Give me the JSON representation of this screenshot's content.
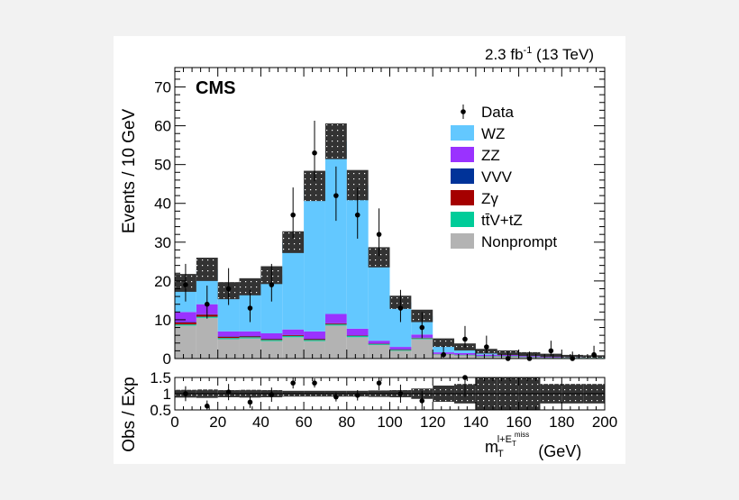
{
  "header": {
    "lumi_label": "2.3 fb",
    "lumi_exp": "-1",
    "energy_label": " (13 TeV)",
    "experiment": "CMS"
  },
  "chart_data": [
    {
      "type": "stacked_histogram",
      "ylabel": "Events / 10 GeV",
      "xlim": [
        0,
        200
      ],
      "ylim": [
        0,
        75
      ],
      "yticks": [
        0,
        10,
        20,
        30,
        40,
        50,
        60,
        70
      ],
      "bin_width": 10,
      "x_bin_edges": [
        0,
        10,
        20,
        30,
        40,
        50,
        60,
        70,
        80,
        90,
        100,
        110,
        120,
        130,
        140,
        150,
        160,
        170,
        180,
        190,
        200
      ],
      "series": [
        {
          "name": "Nonprompt",
          "color": "#b3b3b3",
          "values": [
            8.5,
            10.5,
            5.0,
            5.2,
            4.5,
            5.5,
            4.5,
            8.5,
            5.5,
            3.5,
            2.0,
            5.0,
            1.0,
            0.8,
            0.5,
            0.5,
            0.3,
            0.2,
            0.2,
            0.2
          ]
        },
        {
          "name": "ttV+tZ",
          "color": "#00cc99",
          "values": [
            0.3,
            0.3,
            0.3,
            0.3,
            0.3,
            0.3,
            0.3,
            0.3,
            0.3,
            0.2,
            0.2,
            0.2,
            0.1,
            0.1,
            0.1,
            0.1,
            0.05,
            0.05,
            0.05,
            0.05
          ]
        },
        {
          "name": "Zγ",
          "color": "#a50000",
          "values": [
            0.5,
            0.5,
            0.3,
            0.2,
            0.2,
            0.2,
            0.2,
            0.2,
            0.1,
            0.1,
            0.1,
            0.1,
            0.05,
            0.05,
            0.05,
            0.05,
            0.05,
            0.05,
            0.05,
            0.05
          ]
        },
        {
          "name": "VVV",
          "color": "#003399",
          "values": [
            0.1,
            0.1,
            0.1,
            0.1,
            0.1,
            0.1,
            0.1,
            0.1,
            0.1,
            0.1,
            0.1,
            0.1,
            0.05,
            0.05,
            0.05,
            0.05,
            0.05,
            0.05,
            0.05,
            0.05
          ]
        },
        {
          "name": "ZZ",
          "color": "#9a32ff",
          "values": [
            2.6,
            2.6,
            1.3,
            1.2,
            1.4,
            1.4,
            1.9,
            2.4,
            1.7,
            0.7,
            0.6,
            0.8,
            0.4,
            0.4,
            0.3,
            0.3,
            0.2,
            0.2,
            0.1,
            0.1
          ]
        },
        {
          "name": "WZ",
          "color": "#63c8ff",
          "values": [
            7.5,
            9.0,
            10.5,
            11.5,
            15.0,
            22.5,
            37.5,
            44.5,
            37.0,
            21.5,
            11.5,
            4.8,
            2.5,
            1.6,
            0.9,
            0.5,
            0.5,
            0.3,
            0.2,
            0.1
          ]
        }
      ],
      "total_uncertainty": [
        2.3,
        3.0,
        2.2,
        2.2,
        2.3,
        2.8,
        3.9,
        4.6,
        3.9,
        2.6,
        1.7,
        1.6,
        1.1,
        0.9,
        0.6,
        0.6,
        0.5,
        0.4,
        0.3,
        0.3
      ],
      "data_points": {
        "name": "Data",
        "x": [
          5,
          15,
          25,
          35,
          45,
          55,
          65,
          75,
          85,
          95,
          105,
          115,
          125,
          135,
          145,
          155,
          165,
          175,
          185,
          195
        ],
        "y": [
          19,
          14,
          18,
          13,
          19,
          37,
          53,
          42,
          37,
          32,
          13,
          8,
          1,
          5,
          3,
          0,
          0,
          2,
          0,
          1
        ],
        "err_low": [
          4.3,
          3.7,
          4.2,
          3.6,
          4.3,
          6.1,
          7.3,
          6.5,
          6.1,
          5.6,
          3.6,
          2.8,
          0.8,
          2.2,
          1.6,
          0,
          0,
          1.3,
          0,
          0.8
        ],
        "err_high": [
          5.4,
          4.8,
          5.3,
          4.7,
          5.4,
          7.1,
          8.3,
          7.5,
          7.1,
          6.7,
          4.7,
          4.0,
          2.3,
          3.4,
          2.9,
          1.8,
          1.8,
          2.6,
          1.8,
          2.3
        ]
      },
      "legend": {
        "placement": "top-right",
        "entries": [
          {
            "label": "Data",
            "kind": "marker"
          },
          {
            "label": "WZ",
            "color": "#63c8ff"
          },
          {
            "label": "ZZ",
            "color": "#9a32ff"
          },
          {
            "label": "VVV",
            "color": "#003399"
          },
          {
            "label": "Zγ",
            "color": "#a50000"
          },
          {
            "label": "tt̄V+tZ",
            "color": "#00cc99"
          },
          {
            "label": "Nonprompt",
            "color": "#b3b3b3"
          }
        ]
      }
    },
    {
      "type": "ratio",
      "ylabel": "Obs / Exp",
      "xlim": [
        0,
        200
      ],
      "ylim": [
        0.5,
        1.5
      ],
      "yticks": [
        0.5,
        1,
        1.5
      ],
      "xticks": [
        0,
        20,
        40,
        60,
        80,
        100,
        120,
        140,
        160,
        180,
        200
      ],
      "xlabel_main": "m",
      "xlabel_sub": "T",
      "xlabel_sup": "l+E",
      "xlabel_sup_sub": "T",
      "xlabel_sup_sup": "miss",
      "xlabel_unit": "(GeV)",
      "band_halfwidth": [
        0.12,
        0.13,
        0.11,
        0.12,
        0.11,
        0.09,
        0.09,
        0.09,
        0.09,
        0.1,
        0.11,
        0.16,
        0.25,
        0.3,
        0.5,
        0.5,
        0.5,
        0.3,
        0.3,
        0.3
      ],
      "ratio_points": {
        "x": [
          5,
          15,
          25,
          35,
          45,
          55,
          65,
          75,
          85,
          95,
          105,
          115,
          125,
          135,
          145,
          155,
          165,
          175,
          185,
          195
        ],
        "y": [
          1.0,
          0.62,
          1.05,
          0.74,
          0.97,
          1.33,
          1.33,
          0.9,
          0.95,
          1.33,
          1.0,
          0.78,
          null,
          1.5,
          null,
          null,
          null,
          null,
          null,
          null
        ],
        "err": [
          0.23,
          0.17,
          0.25,
          0.18,
          0.22,
          0.17,
          0.14,
          0.14,
          0.16,
          0.22,
          0.28,
          0.3,
          null,
          0.6,
          null,
          null,
          null,
          null,
          null,
          null
        ]
      }
    }
  ]
}
